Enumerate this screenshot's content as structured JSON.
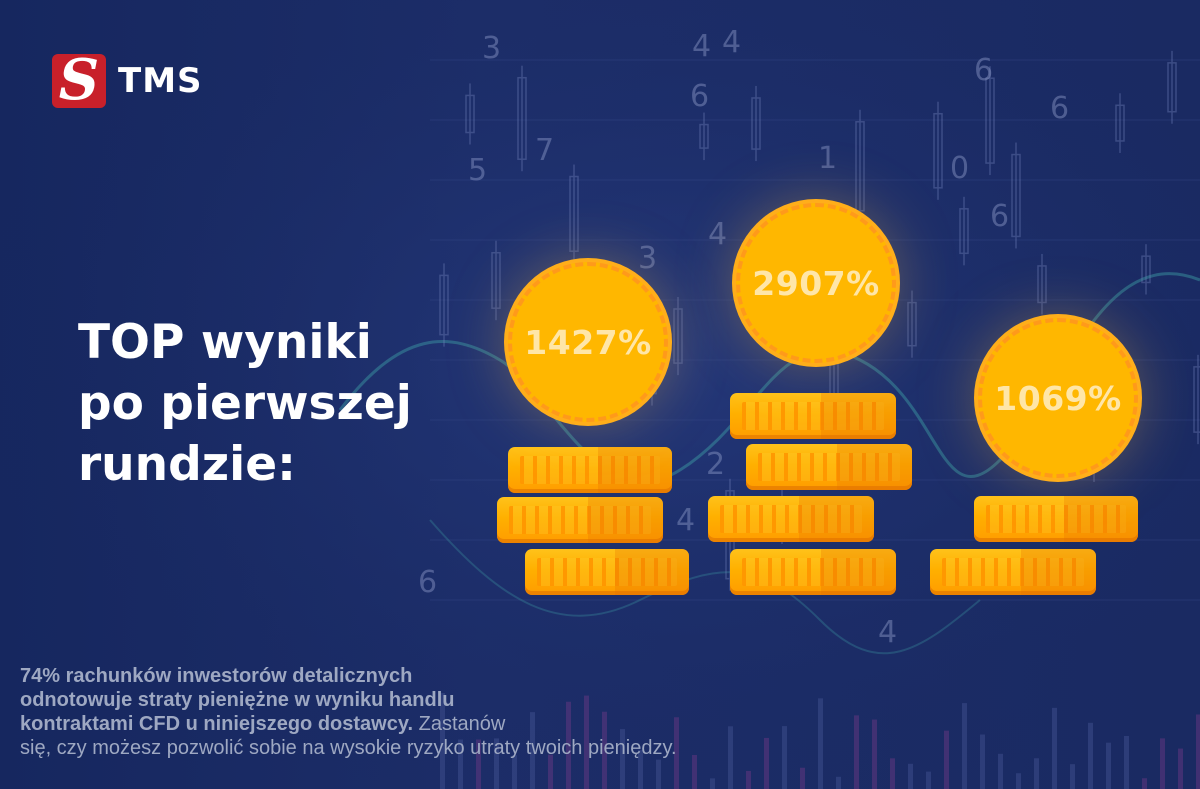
{
  "brand": {
    "name": "TMS",
    "mark": "S",
    "accent": "#c8202a"
  },
  "headline": {
    "line1": "TOP wyniki",
    "line2": "po pierwszej",
    "line3": "rundzie:"
  },
  "results": [
    {
      "label": "1427%"
    },
    {
      "label": "2907%"
    },
    {
      "label": "1069%"
    }
  ],
  "disclaimer": {
    "bold_line1": "74% rachunków inwestorów detalicznych",
    "bold_line2": "odnotowuje straty pieniężne w wyniku handlu",
    "bold_line3": "kontraktami CFD u niniejszego dostawcy.",
    "normal_line3": " Zastanów",
    "normal_line4": "się, czy możesz  pozwolić sobie na wysokie ryzyko utraty twoich pieniędzy."
  },
  "colors": {
    "background": "#1a2a62",
    "coin": "#ffb700",
    "coin_text": "#ffe6a8",
    "disclaimer_text": "#9ea8c2"
  }
}
